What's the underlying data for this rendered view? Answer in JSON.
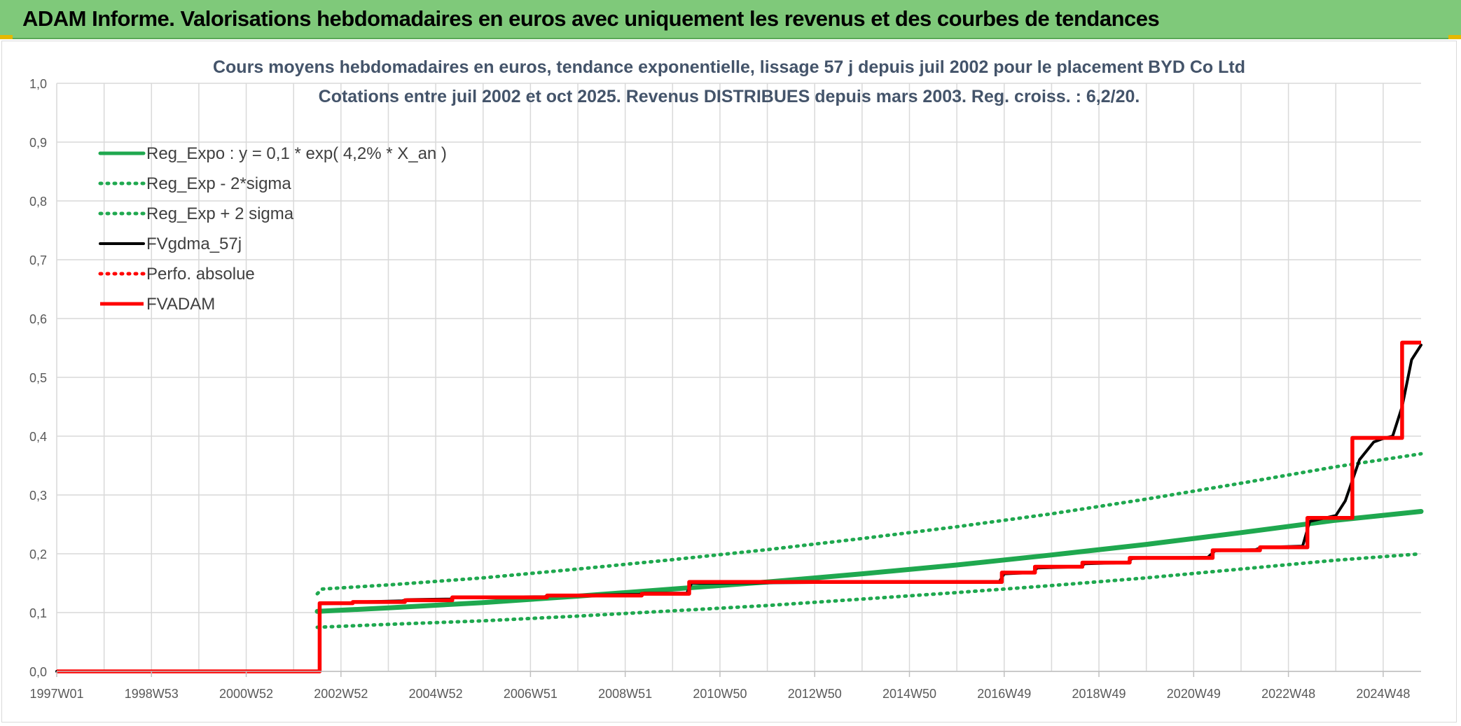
{
  "header": {
    "title": "ADAM Informe. Valorisations hebdomadaires en euros avec uniquement les revenus et des courbes de tendances"
  },
  "colors": {
    "header_bg": "#7fc97a",
    "green": "#1fa84f",
    "black": "#000000",
    "red": "#ff0000",
    "grid": "#d9d9d9",
    "title_text": "#44546a",
    "axis_text": "#595959"
  },
  "chart_data": {
    "type": "line",
    "title": "Cours moyens hebdomadaires en euros, tendance exponentielle, lissage 57 j depuis juil 2002 pour le placement BYD Co Ltd",
    "subtitle": "Cotations entre juil 2002 et oct 2025. Revenus DISTRIBUES depuis mars 2003. Reg. croiss. : 6,2/20.",
    "xlabel": "",
    "ylabel": "",
    "xlim": [
      1997.0,
      2025.8
    ],
    "ylim": [
      0,
      1.0
    ],
    "y_ticks": [
      "0,0",
      "0,1",
      "0,2",
      "0,3",
      "0,4",
      "0,5",
      "0,6",
      "0,7",
      "0,8",
      "0,9",
      "1,0"
    ],
    "x_ticks": [
      {
        "label": "1997W01",
        "x": 1997.0
      },
      {
        "label": "1998W53",
        "x": 1999.0
      },
      {
        "label": "2000W52",
        "x": 2001.0
      },
      {
        "label": "2002W52",
        "x": 2003.0
      },
      {
        "label": "2004W52",
        "x": 2005.0
      },
      {
        "label": "2006W51",
        "x": 2007.0
      },
      {
        "label": "2008W51",
        "x": 2009.0
      },
      {
        "label": "2010W50",
        "x": 2011.0
      },
      {
        "label": "2012W50",
        "x": 2013.0
      },
      {
        "label": "2014W50",
        "x": 2015.0
      },
      {
        "label": "2016W49",
        "x": 2017.0
      },
      {
        "label": "2018W49",
        "x": 2019.0
      },
      {
        "label": "2020W49",
        "x": 2021.0
      },
      {
        "label": "2022W48",
        "x": 2023.0
      },
      {
        "label": "2024W48",
        "x": 2025.0
      }
    ],
    "grid": true,
    "legend_position": "top-left",
    "series": [
      {
        "name": "Reg_Expo : y = 0,1 * exp( 4,2% *  X_an )",
        "color": "#1fa84f",
        "style": "solid",
        "x": [
          2002.5,
          2004,
          2006,
          2008,
          2010,
          2012,
          2014,
          2016,
          2018,
          2020,
          2022,
          2024,
          2025.8
        ],
        "y": [
          0.102,
          0.108,
          0.117,
          0.128,
          0.14,
          0.152,
          0.166,
          0.181,
          0.198,
          0.216,
          0.236,
          0.257,
          0.272
        ]
      },
      {
        "name": "Reg_Exp - 2*sigma",
        "color": "#1fa84f",
        "style": "dotted",
        "x": [
          2002.5,
          2004,
          2006,
          2008,
          2010,
          2012,
          2014,
          2016,
          2018,
          2020,
          2022,
          2024,
          2025.8
        ],
        "y": [
          0.075,
          0.08,
          0.086,
          0.094,
          0.103,
          0.112,
          0.123,
          0.134,
          0.146,
          0.159,
          0.174,
          0.189,
          0.2
        ]
      },
      {
        "name": "Reg_Exp + 2 sigma",
        "color": "#1fa84f",
        "style": "dotted",
        "x": [
          2002.5,
          2002.6,
          2004,
          2006,
          2008,
          2010,
          2012,
          2014,
          2016,
          2018,
          2020,
          2022,
          2024,
          2025.8
        ],
        "y": [
          0.132,
          0.14,
          0.147,
          0.159,
          0.174,
          0.19,
          0.207,
          0.226,
          0.246,
          0.268,
          0.293,
          0.32,
          0.348,
          0.37
        ]
      },
      {
        "name": "FVgdma_57j",
        "color": "#000000",
        "style": "solid",
        "x": [
          1997.0,
          2002.55,
          2002.56,
          2003.2,
          2003.3,
          2004.3,
          2004.4,
          2005.3,
          2005.4,
          2007.3,
          2007.4,
          2009.3,
          2009.4,
          2010.3,
          2010.4,
          2016.9,
          2017.0,
          2017.6,
          2017.7,
          2018.6,
          2018.7,
          2019.6,
          2019.7,
          2021.3,
          2021.45,
          2022.3,
          2022.45,
          2023.3,
          2023.45,
          2024.0,
          2024.2,
          2024.5,
          2024.8,
          2025.0,
          2025.2,
          2025.4,
          2025.6,
          2025.8
        ],
        "y": [
          0.0,
          0.0,
          0.115,
          0.116,
          0.118,
          0.12,
          0.122,
          0.123,
          0.126,
          0.127,
          0.129,
          0.131,
          0.133,
          0.133,
          0.15,
          0.153,
          0.166,
          0.168,
          0.176,
          0.178,
          0.183,
          0.185,
          0.192,
          0.194,
          0.205,
          0.207,
          0.211,
          0.213,
          0.255,
          0.265,
          0.29,
          0.36,
          0.39,
          0.396,
          0.4,
          0.45,
          0.53,
          0.555
        ]
      },
      {
        "name": "Perfo. absolue",
        "color": "#ff0000",
        "style": "dotted",
        "x": [],
        "y": []
      },
      {
        "name": "FVADAM",
        "color": "#ff0000",
        "style": "step",
        "x": [
          1997.0,
          2002.55,
          2002.55,
          2003.25,
          2003.25,
          2004.35,
          2004.35,
          2005.35,
          2005.35,
          2007.35,
          2007.35,
          2009.35,
          2009.35,
          2010.35,
          2010.35,
          2016.95,
          2016.95,
          2017.65,
          2017.65,
          2018.65,
          2018.65,
          2019.65,
          2019.65,
          2021.4,
          2021.4,
          2022.4,
          2022.4,
          2023.4,
          2023.4,
          2024.35,
          2024.35,
          2025.4,
          2025.4,
          2025.8
        ],
        "y": [
          0.0,
          0.0,
          0.116,
          0.116,
          0.118,
          0.118,
          0.121,
          0.121,
          0.126,
          0.126,
          0.129,
          0.129,
          0.132,
          0.132,
          0.152,
          0.152,
          0.168,
          0.168,
          0.178,
          0.178,
          0.185,
          0.185,
          0.193,
          0.193,
          0.206,
          0.206,
          0.211,
          0.211,
          0.261,
          0.261,
          0.397,
          0.397,
          0.559,
          0.559
        ]
      }
    ]
  }
}
